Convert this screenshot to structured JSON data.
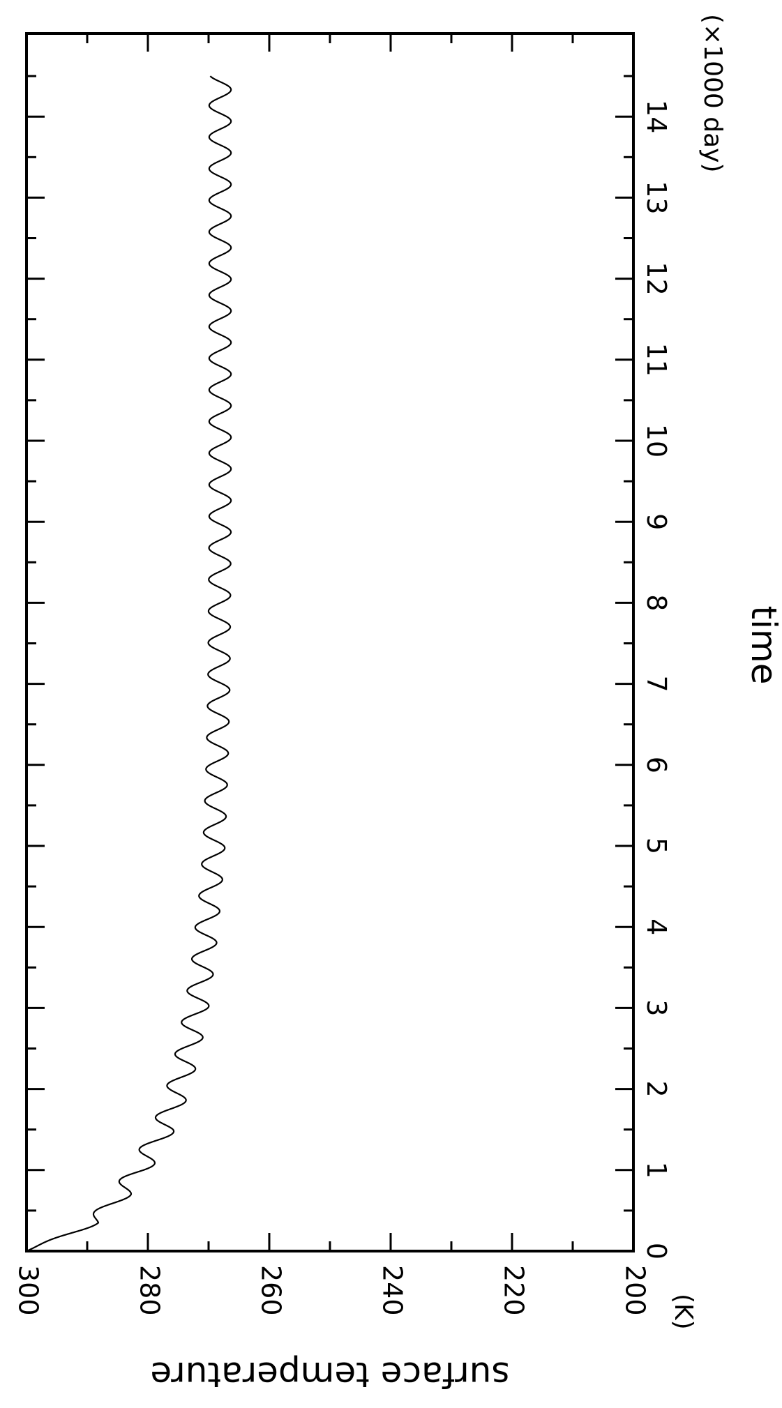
{
  "chart_data": {
    "type": "line",
    "orientation": "rotated-90-clockwise",
    "xlabel": "time",
    "xunit": "(×1000 day)",
    "ylabel": "surface temperature",
    "yunit": "(K)",
    "xlim": [
      0,
      14.5
    ],
    "ylim": [
      200,
      300
    ],
    "x_ticks": [
      "0",
      "1",
      "2",
      "3",
      "4",
      "5",
      "6",
      "7",
      "8",
      "9",
      "10",
      "11",
      "12",
      "13",
      "14"
    ],
    "y_ticks": [
      "200",
      "220",
      "240",
      "260",
      "280",
      "300"
    ],
    "grid": false,
    "legend": "none",
    "line_color": "#000000",
    "series": [
      {
        "oscillation_period": 0.39,
        "trend": {
          "x": [
            0,
            0.35,
            0.7,
            1.0,
            1.5,
            2.0,
            2.5,
            3.0,
            3.5,
            4.0,
            4.5,
            5.0,
            6.0,
            7.0,
            8.0,
            9.0,
            10.0,
            11.0,
            12.0,
            13.0,
            14.0,
            14.5
          ],
          "y": [
            300,
            289.0,
            284.5,
            281.5,
            277.5,
            275.0,
            273.3,
            272.0,
            271.0,
            270.3,
            269.6,
            269.1,
            268.6,
            268.3,
            268.2,
            268.1,
            268.1,
            268.1,
            268.1,
            268.1,
            268.1,
            268.1
          ],
          "amplitude": [
            0,
            1.4,
            1.8,
            2.0,
            2.0,
            2.0,
            2.0,
            2.0,
            1.9,
            1.9,
            1.8,
            1.8,
            1.8,
            1.8,
            1.8,
            1.8,
            1.8,
            1.8,
            1.8,
            1.8,
            1.8,
            1.8
          ]
        }
      }
    ]
  }
}
